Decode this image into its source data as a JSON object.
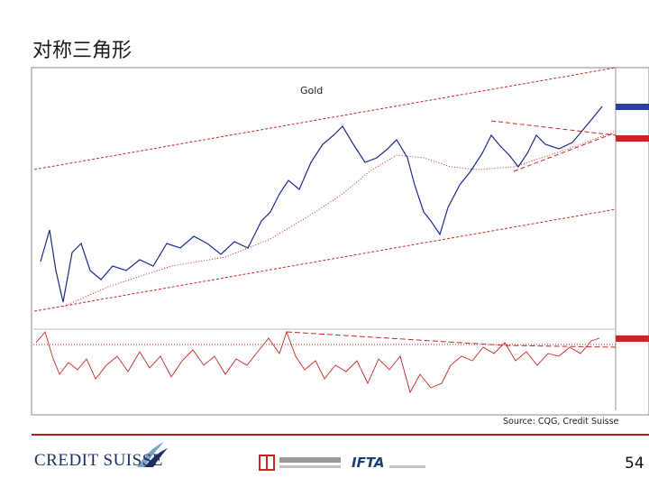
{
  "header": {
    "title": "对称三角形"
  },
  "figure": {
    "label": "Gold",
    "source": "Source: CQG, Credit Suisse"
  },
  "footer": {
    "brand": "CREDIT SUISSE",
    "partner": "IFTA",
    "page_number": "54"
  }
}
